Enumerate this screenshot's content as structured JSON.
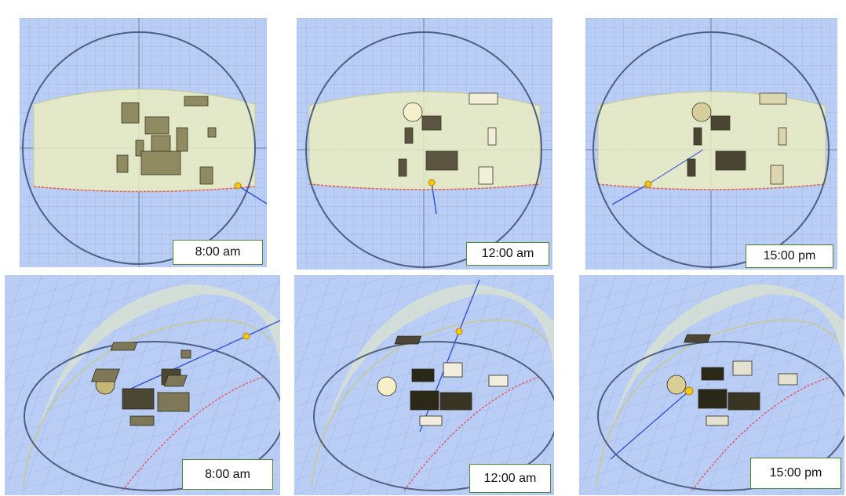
{
  "colors": {
    "sky_blue": "#b9cdf5",
    "grid_line": "#9ab2e6",
    "sun_band": "#e9ecc0",
    "sun_path": "#e35d6a",
    "sun": "#f5c518",
    "dome_ring": "#4f5f80",
    "sun_ray": "#2e4fd6",
    "label_border": "#4f8a2c"
  },
  "panels": [
    {
      "view": "top",
      "time_label": "8:00 am"
    },
    {
      "view": "top",
      "time_label": "12:00 am"
    },
    {
      "view": "top",
      "time_label": "15:00 pm"
    },
    {
      "view": "perspective",
      "time_label": "8:00 am"
    },
    {
      "view": "perspective",
      "time_label": "12:00 am"
    },
    {
      "view": "perspective",
      "time_label": "15:00 pm"
    }
  ]
}
